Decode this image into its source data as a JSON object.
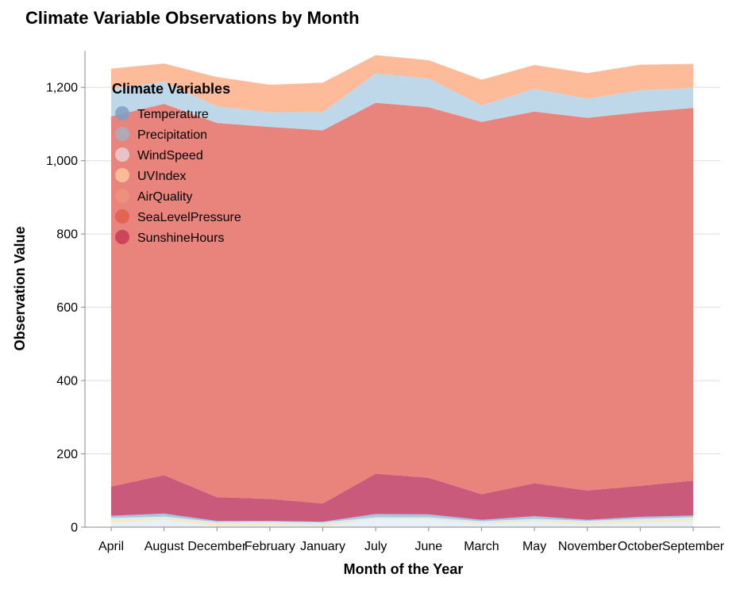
{
  "chart_data": {
    "type": "area",
    "stacked": true,
    "title": "Climate Variable Observations by Month",
    "xlabel": "Month of the Year",
    "ylabel": "Observation Value",
    "ylim": [
      0,
      1300
    ],
    "yticks": [
      0,
      200,
      400,
      600,
      800,
      1000,
      1200
    ],
    "ytick_labels": [
      "0",
      "200",
      "400",
      "600",
      "800",
      "1,000",
      "1,200"
    ],
    "grid": "horizontal",
    "legend": {
      "title": "Climate Variables",
      "placement": "top-left"
    },
    "categories": [
      "April",
      "August",
      "December",
      "February",
      "January",
      "July",
      "June",
      "March",
      "May",
      "November",
      "October",
      "September"
    ],
    "series": [
      {
        "name": "Temperature",
        "color": "#e8f1f8",
        "values": [
          13,
          20,
          3,
          5,
          2,
          23,
          21,
          8,
          15,
          7,
          12,
          17
        ]
      },
      {
        "name": "Precipitation",
        "color": "#fbe9b8",
        "values": [
          7,
          5,
          5,
          3,
          4,
          1,
          2,
          2,
          3,
          4,
          5,
          6
        ]
      },
      {
        "name": "WindSpeed",
        "color": "#d9ecf6",
        "values": [
          5,
          4,
          6,
          7,
          7,
          3,
          4,
          6,
          5,
          6,
          6,
          4
        ]
      },
      {
        "name": "UVIndex",
        "color": "#a7c8e0",
        "values": [
          6,
          8,
          3,
          2,
          2,
          9,
          8,
          4,
          7,
          3,
          5,
          5
        ]
      },
      {
        "name": "AirQuality",
        "color": "#c95a7c",
        "values": [
          80,
          105,
          65,
          60,
          50,
          110,
          100,
          70,
          90,
          80,
          85,
          95
        ]
      },
      {
        "name": "SeaLevelPressure",
        "color": "#e8847c",
        "values": [
          1010,
          1013,
          1021,
          1015,
          1018,
          1012,
          1011,
          1016,
          1014,
          1017,
          1019,
          1017
        ]
      },
      {
        "name": "SunshineHours",
        "color": "#bed8ea",
        "values": [
          75,
          60,
          45,
          40,
          50,
          80,
          78,
          45,
          62,
          52,
          60,
          55
        ]
      },
      {
        "name": "",
        "color": "#fdbb9a",
        "values": [
          55,
          50,
          80,
          75,
          80,
          50,
          50,
          70,
          65,
          70,
          70,
          65
        ]
      }
    ],
    "legend_entries": [
      {
        "label": "Temperature",
        "color": "#7f9fc6"
      },
      {
        "label": "Precipitation",
        "color": "#a8adc1"
      },
      {
        "label": "WindSpeed",
        "color": "#e7cdd2"
      },
      {
        "label": "UVIndex",
        "color": "#fcc69a"
      },
      {
        "label": "AirQuality",
        "color": "#f0927c"
      },
      {
        "label": "SeaLevelPressure",
        "color": "#e25d4f"
      },
      {
        "label": "SunshineHours",
        "color": "#c73a55"
      }
    ]
  }
}
